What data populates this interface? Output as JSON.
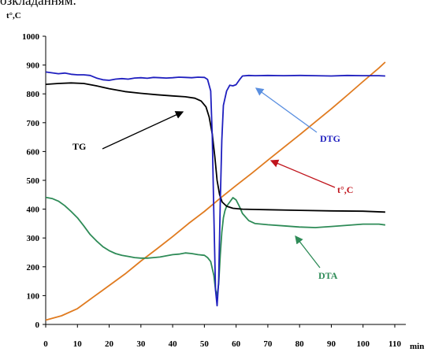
{
  "header_fragment": "озкладанням.",
  "chart_data": {
    "type": "line",
    "ylabel": "t°,C",
    "xlabel": "min",
    "xlim": [
      0,
      110
    ],
    "ylim": [
      0,
      1000
    ],
    "x_ticks": [
      0,
      10,
      20,
      30,
      40,
      50,
      60,
      70,
      80,
      90,
      100,
      110
    ],
    "y_ticks": [
      0,
      100,
      200,
      300,
      400,
      500,
      600,
      700,
      800,
      900,
      1000
    ],
    "grid": false,
    "series": [
      {
        "name": "TG",
        "color": "#000000",
        "x": [
          0,
          4,
          8,
          12,
          16,
          20,
          25,
          30,
          35,
          40,
          44,
          47,
          49,
          50.5,
          51.5,
          52.5,
          53.3,
          54,
          54.8,
          55.6,
          57,
          59,
          62,
          66,
          70,
          80,
          90,
          100,
          107
        ],
        "y": [
          833,
          836,
          838,
          836,
          828,
          818,
          808,
          802,
          797,
          793,
          790,
          785,
          775,
          755,
          720,
          660,
          580,
          500,
          450,
          425,
          410,
          403,
          400,
          399,
          398,
          396,
          394,
          393,
          390
        ]
      },
      {
        "name": "DTG",
        "color": "#1f1fbf",
        "x": [
          0,
          2,
          4,
          6,
          8,
          10,
          12,
          14,
          16,
          18,
          20,
          22,
          24,
          26,
          28,
          30,
          32,
          34,
          36,
          38,
          40,
          42,
          44,
          46,
          48,
          50,
          51,
          52,
          52.5,
          53,
          53.5,
          54,
          54.5,
          55,
          55.5,
          56,
          57,
          58,
          59,
          60,
          61,
          62,
          64,
          66,
          70,
          75,
          80,
          85,
          90,
          95,
          100,
          105,
          107
        ],
        "y": [
          876,
          873,
          870,
          872,
          868,
          866,
          866,
          864,
          855,
          849,
          847,
          851,
          853,
          851,
          855,
          856,
          854,
          857,
          856,
          855,
          856,
          858,
          857,
          856,
          858,
          857,
          850,
          810,
          650,
          380,
          120,
          65,
          150,
          420,
          640,
          760,
          810,
          830,
          828,
          832,
          848,
          862,
          864,
          863,
          864,
          863,
          864,
          863,
          862,
          864,
          863,
          863,
          862
        ]
      },
      {
        "name": "t°,C",
        "color": "#e07b20",
        "x": [
          0,
          5,
          10,
          15,
          20,
          25,
          30,
          35,
          40,
          45,
          50,
          55,
          60,
          65,
          70,
          75,
          80,
          85,
          90,
          95,
          100,
          105,
          107
        ],
        "y": [
          15,
          30,
          55,
          95,
          135,
          175,
          220,
          262,
          305,
          350,
          392,
          438,
          482,
          525,
          570,
          614,
          658,
          703,
          748,
          795,
          843,
          890,
          910
        ]
      },
      {
        "name": "DTA",
        "color": "#2e8b57",
        "x": [
          0,
          2,
          4,
          6,
          8,
          10,
          12,
          14,
          16,
          18,
          20,
          22,
          24,
          26,
          28,
          30,
          32,
          34,
          36,
          38,
          40,
          42,
          44,
          46,
          48,
          50,
          51,
          52,
          53,
          53.5,
          54,
          54.5,
          55,
          55.5,
          56,
          56.5,
          57,
          58,
          59,
          60,
          61,
          62,
          64,
          66,
          68,
          70,
          75,
          80,
          85,
          90,
          95,
          100,
          105,
          107
        ],
        "y": [
          441,
          437,
          428,
          412,
          392,
          370,
          342,
          312,
          290,
          270,
          256,
          246,
          240,
          236,
          232,
          230,
          230,
          232,
          234,
          238,
          242,
          244,
          248,
          246,
          242,
          240,
          232,
          218,
          170,
          120,
          100,
          140,
          240,
          320,
          370,
          395,
          410,
          425,
          440,
          432,
          410,
          385,
          360,
          350,
          348,
          346,
          342,
          338,
          336,
          340,
          344,
          348,
          348,
          345
        ]
      }
    ],
    "annotations": [
      {
        "text": "TG",
        "color": "#000000"
      },
      {
        "text": "DTG",
        "color": "#1f1fbf"
      },
      {
        "text": "t°,C",
        "color": "#c0141c"
      },
      {
        "text": "DTA",
        "color": "#2e8b57"
      }
    ]
  }
}
